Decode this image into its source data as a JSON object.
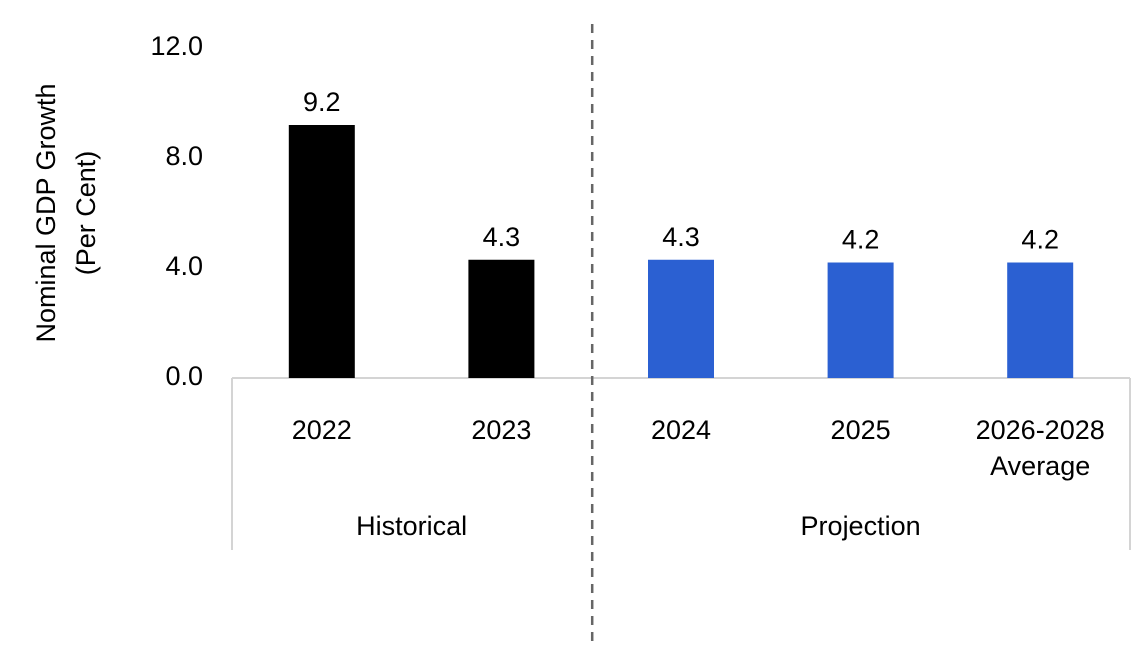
{
  "chart_data": {
    "type": "bar",
    "title": "",
    "xlabel": "",
    "ylabel": [
      "Nominal GDP Growth",
      "(Per Cent)"
    ],
    "ylim": [
      0,
      12
    ],
    "yticks": [
      "0.0",
      "4.0",
      "8.0",
      "12.0"
    ],
    "grid": false,
    "categories": [
      {
        "lines": [
          "2022"
        ],
        "group": "Historical",
        "value": 9.2,
        "label": "9.2",
        "color": "#000000"
      },
      {
        "lines": [
          "2023"
        ],
        "group": "Historical",
        "value": 4.3,
        "label": "4.3",
        "color": "#000000"
      },
      {
        "lines": [
          "2024"
        ],
        "group": "Projection",
        "value": 4.3,
        "label": "4.3",
        "color": "#2b60d2"
      },
      {
        "lines": [
          "2025"
        ],
        "group": "Projection",
        "value": 4.2,
        "label": "4.2",
        "color": "#2b60d2"
      },
      {
        "lines": [
          "2026-2028",
          "Average"
        ],
        "group": "Projection",
        "value": 4.2,
        "label": "4.2",
        "color": "#2b60d2"
      }
    ],
    "groups": [
      "Historical",
      "Projection"
    ],
    "divider": "dashed vertical line between Historical and Projection"
  }
}
